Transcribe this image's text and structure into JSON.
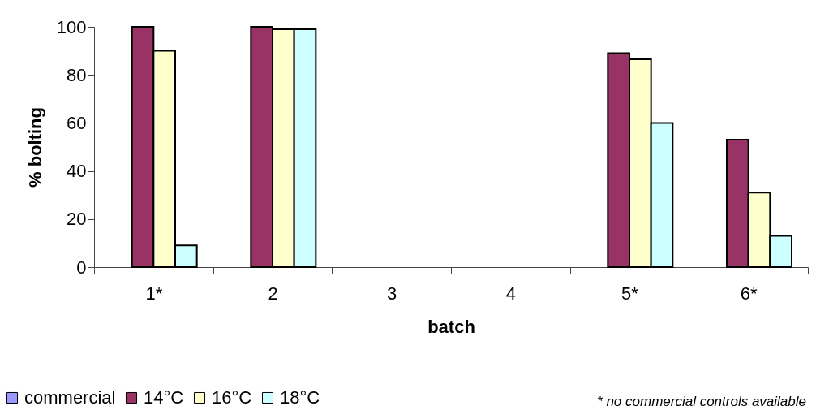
{
  "chart_data": {
    "type": "bar",
    "xlabel": "batch",
    "ylabel": "% bolting",
    "categories": [
      "1*",
      "2",
      "3",
      "4",
      "5*",
      "6*"
    ],
    "series": [
      {
        "name": "commercial",
        "color": "#9999ff",
        "values": [
          null,
          null,
          null,
          null,
          null,
          null
        ]
      },
      {
        "name": "14°C",
        "color": "#993366",
        "values": [
          100,
          100,
          null,
          null,
          89,
          53
        ]
      },
      {
        "name": "16°C",
        "color": "#ffffcc",
        "values": [
          90,
          99,
          null,
          null,
          86.5,
          31
        ]
      },
      {
        "name": "18°C",
        "color": "#ccffff",
        "values": [
          9,
          99,
          null,
          null,
          60,
          13
        ]
      }
    ],
    "ylim": [
      0,
      100
    ],
    "yticks": [
      0,
      20,
      40,
      60,
      80,
      100
    ],
    "grid": false,
    "legend": "bottom",
    "annotations": [
      "* no commercial controls available"
    ]
  }
}
